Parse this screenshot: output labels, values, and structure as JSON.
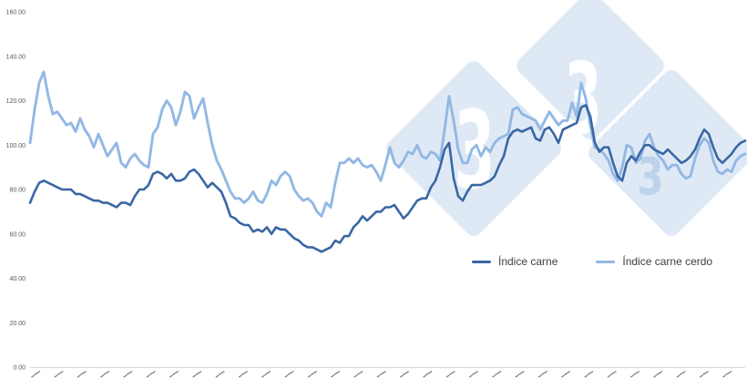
{
  "chart_data": {
    "type": "line",
    "title": "",
    "x_axis": {
      "tick_count": 31,
      "tick_labels_visible": false,
      "labels_cut_off_at_bottom": true
    },
    "y_axis": {
      "tick_labels": [
        "160.00",
        "140.00",
        "120.00",
        "100.00",
        "80.00",
        "60.00",
        "40.00",
        "20.00",
        "0.00"
      ],
      "min": 0,
      "max": 160,
      "gridlines": "zero-baseline-only"
    },
    "series": [
      {
        "name": "Índice carne",
        "color": "#3A67A4",
        "values": [
          74,
          79,
          83,
          84,
          83,
          82,
          81,
          80,
          80,
          80,
          78,
          78,
          77,
          76,
          75,
          75,
          74,
          74,
          73,
          72,
          74,
          74,
          73,
          77,
          80,
          80,
          82,
          87,
          88,
          87,
          85,
          87,
          84,
          84,
          85,
          88,
          89,
          87,
          84,
          81,
          83,
          81,
          79,
          74,
          68,
          67,
          65,
          64,
          64,
          61,
          62,
          61,
          63,
          60,
          63,
          62,
          62,
          60,
          58,
          57,
          55,
          54,
          54,
          53,
          52,
          53,
          54,
          57,
          56,
          59,
          59,
          63,
          65,
          68,
          66,
          68,
          70,
          70,
          72,
          72,
          73,
          70,
          67,
          69,
          72,
          75,
          76,
          76,
          81,
          84,
          90,
          98,
          101,
          85,
          77,
          75,
          79,
          82,
          82,
          82,
          83,
          84,
          86,
          91,
          95,
          103,
          106,
          107,
          106,
          107,
          108,
          103,
          102,
          107,
          108,
          105,
          101,
          107,
          108,
          109,
          110,
          117,
          118,
          113,
          101,
          97,
          99,
          99,
          92,
          86,
          84,
          92,
          95,
          93,
          97,
          100,
          100,
          98,
          97,
          96,
          98,
          96,
          94,
          92,
          93,
          95,
          98,
          103,
          107,
          105,
          99,
          94,
          92,
          94,
          96,
          99,
          101,
          102
        ]
      },
      {
        "name": "Índice carne cerdo",
        "color": "#92B8E4",
        "values": [
          101,
          116,
          128,
          133,
          122,
          114,
          115,
          112,
          109,
          110,
          106,
          112,
          107,
          104,
          99,
          105,
          100,
          95,
          98,
          101,
          92,
          90,
          94,
          96,
          93,
          91,
          90,
          105,
          108,
          116,
          120,
          117,
          109,
          115,
          124,
          122,
          112,
          117,
          121,
          110,
          100,
          93,
          89,
          84,
          79,
          76,
          76,
          74,
          76,
          79,
          75,
          74,
          78,
          84,
          82,
          86,
          88,
          86,
          80,
          77,
          75,
          76,
          74,
          70,
          68,
          74,
          72,
          83,
          92,
          92,
          94,
          92,
          94,
          91,
          90,
          91,
          88,
          84,
          91,
          99,
          92,
          90,
          93,
          97,
          96,
          100,
          95,
          94,
          97,
          96,
          93,
          107,
          122,
          111,
          98,
          92,
          92,
          98,
          100,
          95,
          99,
          97,
          101,
          103,
          104,
          105,
          116,
          117,
          114,
          113,
          112,
          111,
          107,
          111,
          115,
          112,
          109,
          111,
          111,
          119,
          113,
          128,
          121,
          109,
          99,
          98,
          96,
          93,
          87,
          84,
          90,
          100,
          99,
          92,
          94,
          102,
          105,
          99,
          95,
          93,
          89,
          91,
          91,
          87,
          85,
          86,
          94,
          100,
          103,
          101,
          93,
          88,
          87,
          89,
          88,
          93,
          95,
          96
        ]
      }
    ],
    "legend": {
      "position": "bottom-right",
      "items": [
        "Índice carne",
        "Índice carne cerdo"
      ]
    }
  },
  "watermark": {
    "digit": "3",
    "diamond_color": "#DFE9F5",
    "digit_color_primary": "#FFFFFF",
    "digit_color_secondary": "#BDD3EB"
  },
  "colors": {
    "background": "#FFFFFF",
    "baseline": "#D9D9D9",
    "tick_text": "#595959",
    "legend_text": "#3D3D3D"
  }
}
